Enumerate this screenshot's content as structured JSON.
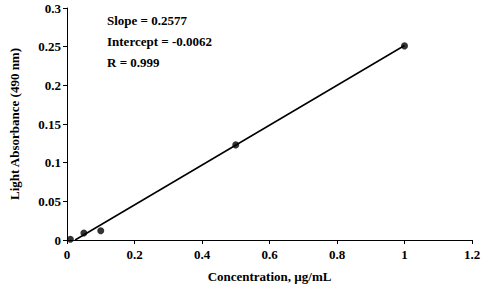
{
  "chart_data": {
    "type": "scatter",
    "x_label": "Concentration, µg/mL",
    "y_label": "Light Absorbance (490 nm)",
    "annotations": [
      "Slope = 0.2577",
      "Intercept = -0.0062",
      "R = 0.999"
    ],
    "series": [
      {
        "type": "scatter",
        "x": [
          0.01,
          0.05,
          0.1,
          0.5,
          1
        ],
        "values": [
          0.001,
          0.009,
          0.012,
          0.123,
          0.251
        ],
        "color": "#000000",
        "marker": "circle"
      },
      {
        "type": "line",
        "x": [
          0.024,
          1
        ],
        "values": [
          0,
          0.2515
        ],
        "color": "#000000",
        "line_style": "solid"
      }
    ],
    "xlim": [
      0,
      1.2
    ],
    "xticks": [
      0,
      0.2,
      0.4,
      0.6,
      0.8,
      1,
      1.2
    ],
    "ylim": [
      0,
      0.3
    ],
    "yticks": [
      0,
      0.05,
      0.1,
      0.15,
      0.2,
      0.25,
      0.3
    ],
    "grid": false
  }
}
